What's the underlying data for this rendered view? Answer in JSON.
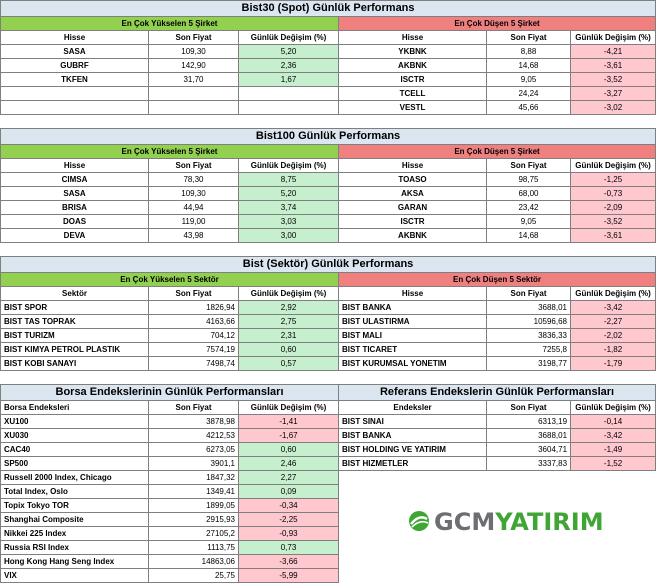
{
  "bist30": {
    "title": "Bist30 (Spot) Günlük Performans",
    "up_header": "En Çok Yükselen 5 Şirket",
    "down_header": "En Çok Düşen 5 Şirket",
    "col_name": "Hisse",
    "col_price": "Son Fiyat",
    "col_change": "Günlük Değişim (%)",
    "up": [
      {
        "name": "SASA",
        "price": "109,30",
        "change": "5,20"
      },
      {
        "name": "GUBRF",
        "price": "142,90",
        "change": "2,36"
      },
      {
        "name": "TKFEN",
        "price": "31,70",
        "change": "1,67"
      },
      {
        "name": "",
        "price": "",
        "change": ""
      },
      {
        "name": "",
        "price": "",
        "change": ""
      }
    ],
    "down": [
      {
        "name": "YKBNK",
        "price": "8,88",
        "change": "-4,21"
      },
      {
        "name": "AKBNK",
        "price": "14,68",
        "change": "-3,61"
      },
      {
        "name": "ISCTR",
        "price": "9,05",
        "change": "-3,52"
      },
      {
        "name": "TCELL",
        "price": "24,24",
        "change": "-3,27"
      },
      {
        "name": "VESTL",
        "price": "45,66",
        "change": "-3,02"
      }
    ]
  },
  "bist100": {
    "title": "Bist100 Günlük Performans",
    "up_header": "En Çok Yükselen 5 Şirket",
    "down_header": "En Çok Düşen 5 Şirket",
    "col_name": "Hisse",
    "col_price": "Son Fiyat",
    "col_change": "Günlük Değişim (%)",
    "up": [
      {
        "name": "CIMSA",
        "price": "78,30",
        "change": "8,75"
      },
      {
        "name": "SASA",
        "price": "109,30",
        "change": "5,20"
      },
      {
        "name": "BRISA",
        "price": "44,94",
        "change": "3,74"
      },
      {
        "name": "DOAS",
        "price": "119,00",
        "change": "3,03"
      },
      {
        "name": "DEVA",
        "price": "43,98",
        "change": "3,00"
      }
    ],
    "down": [
      {
        "name": "TOASO",
        "price": "98,75",
        "change": "-1,25"
      },
      {
        "name": "AKSA",
        "price": "68,00",
        "change": "-0,73"
      },
      {
        "name": "GARAN",
        "price": "23,42",
        "change": "-2,09"
      },
      {
        "name": "ISCTR",
        "price": "9,05",
        "change": "-3,52"
      },
      {
        "name": "AKBNK",
        "price": "14,68",
        "change": "-3,61"
      }
    ]
  },
  "sector": {
    "title": "Bist (Sektör) Günlük Performans",
    "up_header": "En Çok Yükselen 5 Sektör",
    "down_header": "En Çok Düşen 5 Sektör",
    "col_name_up": "Sektör",
    "col_name_down": "Hisse",
    "col_price": "Son Fiyat",
    "col_change": "Günlük Değişim (%)",
    "up": [
      {
        "name": "BIST SPOR",
        "price": "1826,94",
        "change": "2,92"
      },
      {
        "name": "BIST TAS TOPRAK",
        "price": "4163,66",
        "change": "2,75"
      },
      {
        "name": "BIST TURIZM",
        "price": "704,12",
        "change": "2,31"
      },
      {
        "name": "BIST KIMYA PETROL PLASTIK",
        "price": "7574,19",
        "change": "0,60"
      },
      {
        "name": "BIST KOBI SANAYI",
        "price": "7498,74",
        "change": "0,57"
      }
    ],
    "down": [
      {
        "name": "BIST BANKA",
        "price": "3688,01",
        "change": "-3,42"
      },
      {
        "name": "BIST ULASTIRMA",
        "price": "10596,68",
        "change": "-2,27"
      },
      {
        "name": "BIST MALI",
        "price": "3836,33",
        "change": "-2,02"
      },
      {
        "name": "BIST TICARET",
        "price": "7255,8",
        "change": "-1,82"
      },
      {
        "name": "BIST KURUMSAL YONETIM",
        "price": "3198,77",
        "change": "-1,79"
      }
    ]
  },
  "borsa": {
    "title": "Borsa Endekslerinin Günlük Performansları",
    "col_name": "Borsa Endeksleri",
    "col_price": "Son Fiyat",
    "col_change": "Günlük Değişim (%)",
    "rows": [
      {
        "name": "XU100",
        "price": "3878,98",
        "change": "-1,41",
        "sign": "neg"
      },
      {
        "name": "XU030",
        "price": "4212,53",
        "change": "-1,67",
        "sign": "neg"
      },
      {
        "name": "CAC40",
        "price": "6273,05",
        "change": "0,60",
        "sign": "pos"
      },
      {
        "name": "SP500",
        "price": "3901,1",
        "change": "2,46",
        "sign": "pos"
      },
      {
        "name": "Russell 2000 Index, Chicago",
        "price": "1847,32",
        "change": "2,27",
        "sign": "pos"
      },
      {
        "name": "Total Index, Oslo",
        "price": "1349,41",
        "change": "0,09",
        "sign": "pos"
      },
      {
        "name": "Topix Tokyo TOR",
        "price": "1899,05",
        "change": "-0,34",
        "sign": "neg"
      },
      {
        "name": "Shanghai Composite",
        "price": "2915,93",
        "change": "-2,25",
        "sign": "neg"
      },
      {
        "name": "Nikkei 225 Index",
        "price": "27105,2",
        "change": "-0,93",
        "sign": "neg"
      },
      {
        "name": "Russia RSI Index",
        "price": "1113,75",
        "change": "0,73",
        "sign": "pos"
      },
      {
        "name": "Hong Kong Hang Seng Index",
        "price": "14863,06",
        "change": "-3,66",
        "sign": "neg"
      },
      {
        "name": "VIX",
        "price": "25,75",
        "change": "-5,99",
        "sign": "neg"
      }
    ]
  },
  "referans": {
    "title": "Referans Endekslerin  Günlük Performansları",
    "col_name": "Endeksler",
    "col_price": "Son Fiyat",
    "col_change": "Günlük Değişim (%)",
    "rows": [
      {
        "name": "BIST SINAI",
        "price": "6313,19",
        "change": "-0,14"
      },
      {
        "name": "BIST BANKA",
        "price": "3688,01",
        "change": "-3,42"
      },
      {
        "name": "BIST HOLDING VE YATIRIM",
        "price": "3604,71",
        "change": "-1,49"
      },
      {
        "name": "BIST HIZMETLER",
        "price": "3337,83",
        "change": "-1,52"
      }
    ]
  },
  "logo": {
    "text_a": "GCM",
    "text_b": "YATIRIM",
    "color_gray": "#6d6e71",
    "color_green": "#3fa535",
    "icon": "gcm-logo-mark"
  },
  "colors": {
    "title_bg": "#dce6f1",
    "up_header": "#92d050",
    "down_header": "#f08080",
    "pos_cell": "#c6efce",
    "neg_cell": "#ffc7ce"
  }
}
